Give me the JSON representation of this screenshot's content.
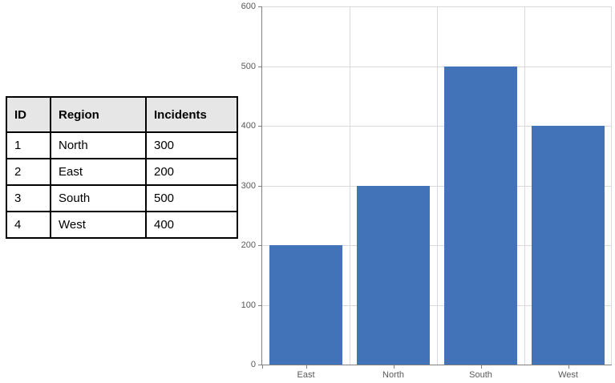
{
  "table": {
    "headers": [
      "ID",
      "Region",
      "Incidents"
    ],
    "rows": [
      [
        "1",
        "North",
        "300"
      ],
      [
        "2",
        "East",
        "200"
      ],
      [
        "3",
        "South",
        "500"
      ],
      [
        "4",
        "West",
        "400"
      ]
    ],
    "header_bg": "#E7E6E6",
    "border_color": "#000000"
  },
  "chart_data": {
    "type": "bar",
    "categories": [
      "East",
      "North",
      "South",
      "West"
    ],
    "values": [
      200,
      300,
      500,
      400
    ],
    "title": "",
    "xlabel": "",
    "ylabel": "",
    "ylim": [
      0,
      600
    ],
    "ytick_step": 100,
    "yticks": [
      0,
      100,
      200,
      300,
      400,
      500,
      600
    ],
    "grid": true,
    "legend": false,
    "bar_color": "#4273B8",
    "gridline_color": "#D9D9D9",
    "axis_color": "#808080",
    "tick_label_color": "#595959"
  }
}
